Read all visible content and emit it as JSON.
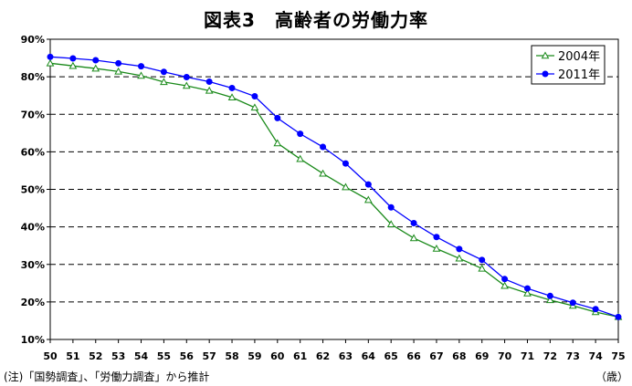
{
  "chart_data": {
    "type": "line",
    "title": "図表3　高齢者の労働力率",
    "x": [
      50,
      51,
      52,
      53,
      54,
      55,
      56,
      57,
      58,
      59,
      60,
      61,
      62,
      63,
      64,
      65,
      66,
      67,
      68,
      69,
      70,
      71,
      72,
      73,
      74,
      75
    ],
    "series": [
      {
        "name": "2004年",
        "color": "#1a8a1a",
        "marker": "open-triangle",
        "values": [
          83.6,
          82.9,
          82.2,
          81.4,
          80.3,
          78.6,
          77.6,
          76.3,
          74.5,
          71.8,
          62.3,
          58.1,
          54.2,
          50.6,
          47.2,
          40.7,
          37.0,
          34.2,
          31.6,
          28.9,
          24.3,
          22.3,
          20.5,
          19.0,
          17.3,
          16.0
        ]
      },
      {
        "name": "2011年",
        "color": "#0000ff",
        "marker": "filled-circle",
        "values": [
          85.3,
          84.9,
          84.4,
          83.6,
          82.8,
          81.3,
          79.9,
          78.7,
          77.0,
          74.8,
          69.0,
          64.8,
          61.3,
          56.9,
          51.3,
          45.2,
          41.0,
          37.3,
          34.1,
          31.2,
          26.1,
          23.6,
          21.6,
          19.8,
          18.1,
          16.0
        ]
      }
    ],
    "yticks": [
      "10%",
      "20%",
      "30%",
      "40%",
      "50%",
      "60%",
      "70%",
      "80%",
      "90%"
    ],
    "ylim": [
      10,
      90
    ],
    "xlim": [
      50,
      75
    ],
    "grid": "horizontal dashed",
    "legend_position": "top-right",
    "xunit": "（歳）",
    "footnote": "(注)「国勢調査」、「労働力調査」から推計"
  }
}
